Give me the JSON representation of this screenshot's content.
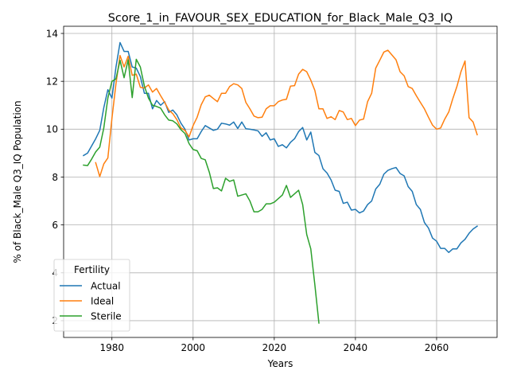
{
  "chart_data": {
    "type": "line",
    "title": "Score_1_in_FAVOUR_SEX_EDUCATION_for_Black_Male_Q3_IQ",
    "xlabel": "Years",
    "ylabel": "% of Black_Male Q3_IQ Population",
    "xlim": [
      1968.1,
      2074.9
    ],
    "ylim": [
      1.3,
      14.3
    ],
    "xticks": [
      1980,
      2000,
      2020,
      2040,
      2060
    ],
    "yticks": [
      2,
      4,
      6,
      8,
      10,
      12,
      14
    ],
    "grid": true,
    "legend": {
      "title": "Fertility",
      "placement": "lower-left"
    },
    "series": [
      {
        "name": "Actual",
        "color": "#1f77b4",
        "points": [
          [
            1973,
            8.9
          ],
          [
            1974,
            9.0
          ],
          [
            1975,
            9.3
          ],
          [
            1976,
            9.6
          ],
          [
            1977,
            9.95
          ],
          [
            1978,
            10.9
          ],
          [
            1979,
            11.65
          ],
          [
            1980,
            11.3
          ],
          [
            1981,
            12.6
          ],
          [
            1982,
            13.62
          ],
          [
            1983,
            13.25
          ],
          [
            1984,
            13.25
          ],
          [
            1985,
            12.6
          ],
          [
            1986,
            12.55
          ],
          [
            1987,
            12.2
          ],
          [
            1988,
            11.5
          ],
          [
            1989,
            11.5
          ],
          [
            1990,
            10.85
          ],
          [
            1991,
            11.2
          ],
          [
            1992,
            11.0
          ],
          [
            1993,
            11.15
          ],
          [
            1994,
            10.7
          ],
          [
            1995,
            10.8
          ],
          [
            1996,
            10.6
          ],
          [
            1997,
            10.25
          ],
          [
            1998,
            10.0
          ],
          [
            1999,
            9.55
          ],
          [
            2000,
            9.6
          ],
          [
            2001,
            9.6
          ],
          [
            2002,
            9.9
          ],
          [
            2003,
            10.15
          ],
          [
            2004,
            10.05
          ],
          [
            2005,
            9.95
          ],
          [
            2006,
            10.0
          ],
          [
            2007,
            10.25
          ],
          [
            2008,
            10.22
          ],
          [
            2009,
            10.17
          ],
          [
            2010,
            10.3
          ],
          [
            2011,
            10.03
          ],
          [
            2012,
            10.3
          ],
          [
            2013,
            10.02
          ],
          [
            2014,
            10.0
          ],
          [
            2015,
            9.97
          ],
          [
            2016,
            9.93
          ],
          [
            2017,
            9.7
          ],
          [
            2018,
            9.85
          ],
          [
            2019,
            9.55
          ],
          [
            2020,
            9.6
          ],
          [
            2021,
            9.28
          ],
          [
            2022,
            9.35
          ],
          [
            2023,
            9.22
          ],
          [
            2024,
            9.45
          ],
          [
            2025,
            9.6
          ],
          [
            2026,
            9.9
          ],
          [
            2027,
            10.07
          ],
          [
            2028,
            9.55
          ],
          [
            2029,
            9.88
          ],
          [
            2030,
            9.03
          ],
          [
            2031,
            8.9
          ],
          [
            2032,
            8.35
          ],
          [
            2033,
            8.17
          ],
          [
            2034,
            7.88
          ],
          [
            2035,
            7.45
          ],
          [
            2036,
            7.4
          ],
          [
            2037,
            6.9
          ],
          [
            2038,
            6.95
          ],
          [
            2039,
            6.62
          ],
          [
            2040,
            6.65
          ],
          [
            2041,
            6.5
          ],
          [
            2042,
            6.58
          ],
          [
            2043,
            6.85
          ],
          [
            2044,
            7.0
          ],
          [
            2045,
            7.5
          ],
          [
            2046,
            7.7
          ],
          [
            2047,
            8.12
          ],
          [
            2048,
            8.28
          ],
          [
            2049,
            8.35
          ],
          [
            2050,
            8.4
          ],
          [
            2051,
            8.15
          ],
          [
            2052,
            8.05
          ],
          [
            2053,
            7.6
          ],
          [
            2054,
            7.4
          ],
          [
            2055,
            6.85
          ],
          [
            2056,
            6.65
          ],
          [
            2057,
            6.1
          ],
          [
            2058,
            5.87
          ],
          [
            2059,
            5.45
          ],
          [
            2060,
            5.32
          ],
          [
            2061,
            5.02
          ],
          [
            2062,
            5.02
          ],
          [
            2063,
            4.85
          ],
          [
            2064,
            5.0
          ],
          [
            2065,
            5.0
          ],
          [
            2066,
            5.25
          ],
          [
            2067,
            5.4
          ],
          [
            2068,
            5.65
          ],
          [
            2069,
            5.83
          ],
          [
            2070,
            5.95
          ]
        ]
      },
      {
        "name": "Ideal",
        "color": "#ff7f0e",
        "points": [
          [
            1976,
            8.6
          ],
          [
            1977,
            8.02
          ],
          [
            1978,
            8.55
          ],
          [
            1979,
            8.8
          ],
          [
            1980,
            10.45
          ],
          [
            1981,
            11.9
          ],
          [
            1982,
            13.08
          ],
          [
            1983,
            12.6
          ],
          [
            1984,
            13.05
          ],
          [
            1985,
            12.25
          ],
          [
            1986,
            12.3
          ],
          [
            1987,
            11.75
          ],
          [
            1988,
            11.72
          ],
          [
            1989,
            11.85
          ],
          [
            1990,
            11.55
          ],
          [
            1991,
            11.7
          ],
          [
            1992,
            11.4
          ],
          [
            1993,
            11.12
          ],
          [
            1994,
            10.8
          ],
          [
            1995,
            10.65
          ],
          [
            1996,
            10.4
          ],
          [
            1997,
            10.05
          ],
          [
            1998,
            9.95
          ],
          [
            1999,
            9.68
          ],
          [
            2000,
            10.15
          ],
          [
            2001,
            10.5
          ],
          [
            2002,
            11.02
          ],
          [
            2003,
            11.35
          ],
          [
            2004,
            11.42
          ],
          [
            2005,
            11.28
          ],
          [
            2006,
            11.15
          ],
          [
            2007,
            11.5
          ],
          [
            2008,
            11.5
          ],
          [
            2009,
            11.78
          ],
          [
            2010,
            11.9
          ],
          [
            2011,
            11.85
          ],
          [
            2012,
            11.7
          ],
          [
            2013,
            11.12
          ],
          [
            2014,
            10.85
          ],
          [
            2015,
            10.55
          ],
          [
            2016,
            10.48
          ],
          [
            2017,
            10.5
          ],
          [
            2018,
            10.85
          ],
          [
            2019,
            10.98
          ],
          [
            2020,
            10.98
          ],
          [
            2021,
            11.15
          ],
          [
            2022,
            11.22
          ],
          [
            2023,
            11.25
          ],
          [
            2024,
            11.8
          ],
          [
            2025,
            11.82
          ],
          [
            2026,
            12.3
          ],
          [
            2027,
            12.5
          ],
          [
            2028,
            12.4
          ],
          [
            2029,
            12.05
          ],
          [
            2030,
            11.62
          ],
          [
            2031,
            10.85
          ],
          [
            2032,
            10.85
          ],
          [
            2033,
            10.45
          ],
          [
            2034,
            10.52
          ],
          [
            2035,
            10.4
          ],
          [
            2036,
            10.78
          ],
          [
            2037,
            10.72
          ],
          [
            2038,
            10.4
          ],
          [
            2039,
            10.45
          ],
          [
            2040,
            10.15
          ],
          [
            2041,
            10.38
          ],
          [
            2042,
            10.42
          ],
          [
            2043,
            11.15
          ],
          [
            2044,
            11.5
          ],
          [
            2045,
            12.55
          ],
          [
            2046,
            12.88
          ],
          [
            2047,
            13.22
          ],
          [
            2048,
            13.3
          ],
          [
            2049,
            13.1
          ],
          [
            2050,
            12.9
          ],
          [
            2051,
            12.4
          ],
          [
            2052,
            12.23
          ],
          [
            2053,
            11.78
          ],
          [
            2054,
            11.7
          ],
          [
            2055,
            11.4
          ],
          [
            2056,
            11.12
          ],
          [
            2057,
            10.85
          ],
          [
            2058,
            10.5
          ],
          [
            2059,
            10.17
          ],
          [
            2060,
            10.0
          ],
          [
            2061,
            10.05
          ],
          [
            2062,
            10.42
          ],
          [
            2063,
            10.72
          ],
          [
            2064,
            11.28
          ],
          [
            2065,
            11.78
          ],
          [
            2066,
            12.4
          ],
          [
            2067,
            12.85
          ],
          [
            2068,
            10.48
          ],
          [
            2069,
            10.3
          ],
          [
            2070,
            9.77
          ]
        ]
      },
      {
        "name": "Sterile",
        "color": "#2ca02c",
        "points": [
          [
            1973,
            8.5
          ],
          [
            1974,
            8.48
          ],
          [
            1975,
            8.75
          ],
          [
            1976,
            9.05
          ],
          [
            1977,
            9.25
          ],
          [
            1978,
            10.05
          ],
          [
            1979,
            11.3
          ],
          [
            1980,
            12.0
          ],
          [
            1981,
            12.1
          ],
          [
            1982,
            12.88
          ],
          [
            1983,
            12.15
          ],
          [
            1984,
            12.9
          ],
          [
            1985,
            11.32
          ],
          [
            1986,
            12.92
          ],
          [
            1987,
            12.6
          ],
          [
            1988,
            11.8
          ],
          [
            1989,
            11.3
          ],
          [
            1990,
            11.0
          ],
          [
            1991,
            10.95
          ],
          [
            1992,
            10.88
          ],
          [
            1993,
            10.6
          ],
          [
            1994,
            10.38
          ],
          [
            1995,
            10.35
          ],
          [
            1996,
            10.22
          ],
          [
            1997,
            9.98
          ],
          [
            1998,
            9.82
          ],
          [
            1999,
            9.4
          ],
          [
            2000,
            9.15
          ],
          [
            2001,
            9.1
          ],
          [
            2002,
            8.78
          ],
          [
            2003,
            8.72
          ],
          [
            2004,
            8.2
          ],
          [
            2005,
            7.52
          ],
          [
            2006,
            7.55
          ],
          [
            2007,
            7.42
          ],
          [
            2008,
            7.95
          ],
          [
            2009,
            7.82
          ],
          [
            2010,
            7.88
          ],
          [
            2011,
            7.2
          ],
          [
            2012,
            7.25
          ],
          [
            2013,
            7.3
          ],
          [
            2014,
            7.0
          ],
          [
            2015,
            6.55
          ],
          [
            2016,
            6.55
          ],
          [
            2017,
            6.65
          ],
          [
            2018,
            6.88
          ],
          [
            2019,
            6.88
          ],
          [
            2020,
            6.95
          ],
          [
            2021,
            7.1
          ],
          [
            2022,
            7.25
          ],
          [
            2023,
            7.65
          ],
          [
            2024,
            7.15
          ],
          [
            2025,
            7.3
          ],
          [
            2026,
            7.45
          ],
          [
            2027,
            6.85
          ],
          [
            2028,
            5.6
          ],
          [
            2029,
            5.0
          ],
          [
            2030,
            3.5
          ],
          [
            2031,
            1.9
          ]
        ]
      }
    ]
  }
}
